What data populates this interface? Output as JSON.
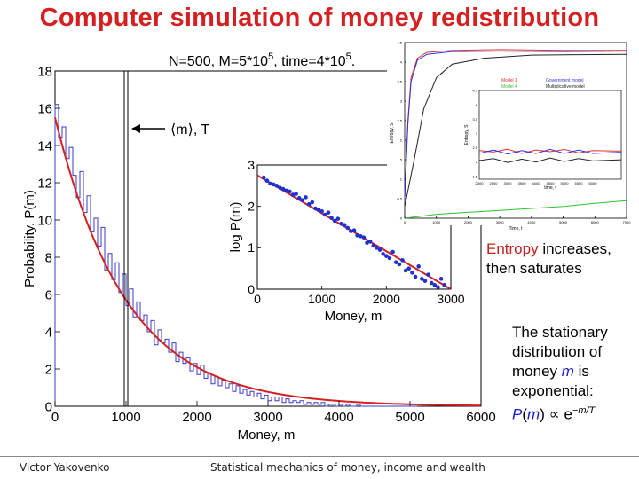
{
  "slide": {
    "title": "Computer simulation of money redistribution",
    "footer_left": "Victor Yakovenko",
    "footer_center": "Statistical mechanics of money, income and wealth"
  },
  "notes": {
    "entropy_word": "Entropy",
    "entropy_rest1": " increases,",
    "entropy_rest2": "then saturates",
    "stationary_1": "The stationary",
    "stationary_2": "distribution of",
    "stationary_3a": "money ",
    "stationary_3b": "m",
    "stationary_3c": " is",
    "stationary_4": "exponential:",
    "stationary_5a": "P",
    "stationary_5b": "(",
    "stationary_5c": "m",
    "stationary_5d": ") ∝ e",
    "stationary_5e": "−m/T"
  },
  "chart_data": [
    {
      "type": "line",
      "annotation_params": "N=500, M=5*10",
      "annotation_exp1": "5",
      "annotation_mid": ", time=4*10",
      "annotation_exp2": "5",
      "annotation_end": ".",
      "arrow_label": "⟨m⟩, T",
      "xlabel": "Money, m",
      "ylabel": "Probability, P(m)",
      "xlim": [
        0,
        6000
      ],
      "ylim": [
        0,
        18
      ],
      "xticks": [
        "0",
        "1000",
        "2000",
        "3000",
        "4000",
        "5000",
        "6000"
      ],
      "yticks": [
        "0",
        "2",
        "4",
        "6",
        "8",
        "10",
        "12",
        "14",
        "16",
        "18"
      ],
      "vertical_line_x": 1000,
      "fit_curve": {
        "color": "#d42020",
        "amplitude": 15.5,
        "T": 1000
      },
      "histogram_color": "#3a3acf",
      "histogram": [
        [
          0,
          16.2
        ],
        [
          50,
          14.4
        ],
        [
          100,
          15.0
        ],
        [
          150,
          13.3
        ],
        [
          200,
          13.9
        ],
        [
          250,
          12.4
        ],
        [
          300,
          11.2
        ],
        [
          350,
          12.6
        ],
        [
          400,
          10.4
        ],
        [
          450,
          11.3
        ],
        [
          500,
          9.4
        ],
        [
          550,
          10.1
        ],
        [
          600,
          8.6
        ],
        [
          650,
          9.6
        ],
        [
          700,
          7.3
        ],
        [
          750,
          8.2
        ],
        [
          800,
          6.8
        ],
        [
          850,
          7.7
        ],
        [
          900,
          6.1
        ],
        [
          950,
          7.1
        ],
        [
          1000,
          5.4
        ],
        [
          1050,
          6.3
        ],
        [
          1100,
          4.8
        ],
        [
          1150,
          5.6
        ],
        [
          1200,
          4.6
        ],
        [
          1250,
          4.9
        ],
        [
          1300,
          4.0
        ],
        [
          1350,
          4.6
        ],
        [
          1400,
          3.3
        ],
        [
          1450,
          4.1
        ],
        [
          1500,
          3.4
        ],
        [
          1550,
          3.6
        ],
        [
          1600,
          2.9
        ],
        [
          1650,
          3.4
        ],
        [
          1700,
          2.4
        ],
        [
          1750,
          2.9
        ],
        [
          1800,
          2.3
        ],
        [
          1850,
          2.6
        ],
        [
          1900,
          1.9
        ],
        [
          1950,
          2.3
        ],
        [
          2000,
          1.7
        ],
        [
          2050,
          2.2
        ],
        [
          2100,
          1.5
        ],
        [
          2150,
          1.8
        ],
        [
          2200,
          1.2
        ],
        [
          2250,
          1.6
        ],
        [
          2300,
          1.1
        ],
        [
          2350,
          1.4
        ],
        [
          2400,
          1.0
        ],
        [
          2450,
          1.2
        ],
        [
          2500,
          0.8
        ],
        [
          2550,
          1.1
        ],
        [
          2600,
          0.7
        ],
        [
          2650,
          0.9
        ],
        [
          2700,
          0.6
        ],
        [
          2750,
          0.8
        ],
        [
          2800,
          0.5
        ],
        [
          2850,
          0.7
        ],
        [
          2900,
          0.4
        ],
        [
          2950,
          0.6
        ],
        [
          3000,
          0.3
        ],
        [
          3050,
          0.5
        ],
        [
          3100,
          0.3
        ],
        [
          3150,
          0.5
        ],
        [
          3200,
          0.2
        ],
        [
          3250,
          0.4
        ],
        [
          3300,
          0.2
        ],
        [
          3350,
          0.3
        ],
        [
          3400,
          0.2
        ],
        [
          3450,
          0.3
        ],
        [
          3500,
          0.1
        ],
        [
          3550,
          0.2
        ],
        [
          3600,
          0.1
        ],
        [
          3650,
          0.2
        ],
        [
          3700,
          0.1
        ],
        [
          3750,
          0.2
        ],
        [
          3800,
          0.0
        ],
        [
          3850,
          0.1
        ],
        [
          3900,
          0.1
        ],
        [
          3950,
          0.0
        ],
        [
          4000,
          0.1
        ],
        [
          4050,
          0.0
        ],
        [
          4100,
          0.1
        ],
        [
          4150,
          0.0
        ],
        [
          4200,
          0.0
        ],
        [
          4250,
          0.1
        ],
        [
          4300,
          0.0
        ],
        [
          4350,
          0.0
        ],
        [
          4400,
          0.0
        ],
        [
          4450,
          0.0
        ],
        [
          4500,
          0.0
        ],
        [
          4550,
          0.0
        ],
        [
          4600,
          0.0
        ],
        [
          4650,
          0.0
        ],
        [
          4700,
          0.0
        ],
        [
          4750,
          0.0
        ],
        [
          4800,
          0.0
        ],
        [
          4850,
          0.0
        ],
        [
          4900,
          0.0
        ],
        [
          4950,
          0.0
        ],
        [
          5000,
          0.0
        ],
        [
          5050,
          0.0
        ]
      ]
    },
    {
      "type": "scatter",
      "xlabel": "Money, m",
      "ylabel": "log P(m)",
      "xlim": [
        0,
        3000
      ],
      "ylim": [
        0,
        3
      ],
      "xticks": [
        "0",
        "1000",
        "2000",
        "3000"
      ],
      "yticks": [
        "0",
        "1",
        "2",
        "3"
      ],
      "fit_line": {
        "x": [
          0,
          3000
        ],
        "y": [
          2.75,
          0
        ]
      },
      "points": [
        [
          100,
          2.7
        ],
        [
          150,
          2.62
        ],
        [
          200,
          2.55
        ],
        [
          250,
          2.53
        ],
        [
          300,
          2.5
        ],
        [
          350,
          2.45
        ],
        [
          400,
          2.42
        ],
        [
          450,
          2.38
        ],
        [
          500,
          2.36
        ],
        [
          550,
          2.28
        ],
        [
          600,
          2.3
        ],
        [
          650,
          2.2
        ],
        [
          700,
          2.15
        ],
        [
          750,
          2.22
        ],
        [
          800,
          2.05
        ],
        [
          850,
          2.1
        ],
        [
          900,
          1.95
        ],
        [
          950,
          1.92
        ],
        [
          1000,
          1.88
        ],
        [
          1050,
          1.8
        ],
        [
          1100,
          1.85
        ],
        [
          1150,
          1.72
        ],
        [
          1200,
          1.65
        ],
        [
          1250,
          1.7
        ],
        [
          1300,
          1.58
        ],
        [
          1350,
          1.55
        ],
        [
          1400,
          1.48
        ],
        [
          1450,
          1.4
        ],
        [
          1500,
          1.42
        ],
        [
          1550,
          1.3
        ],
        [
          1600,
          1.28
        ],
        [
          1650,
          1.25
        ],
        [
          1700,
          1.12
        ],
        [
          1750,
          1.15
        ],
        [
          1800,
          1.05
        ],
        [
          1850,
          1.0
        ],
        [
          1900,
          0.95
        ],
        [
          1950,
          0.85
        ],
        [
          2000,
          0.8
        ],
        [
          2050,
          0.75
        ],
        [
          2100,
          0.9
        ],
        [
          2150,
          0.65
        ],
        [
          2200,
          0.6
        ],
        [
          2250,
          0.7
        ],
        [
          2300,
          0.45
        ],
        [
          2350,
          0.5
        ],
        [
          2400,
          0.4
        ],
        [
          2450,
          0.3
        ],
        [
          2500,
          0.55
        ],
        [
          2550,
          0.25
        ],
        [
          2600,
          0.2
        ],
        [
          2650,
          0.35
        ],
        [
          2700,
          0.15
        ],
        [
          2750,
          0.1
        ],
        [
          2800,
          0.05
        ],
        [
          2850,
          0.25
        ],
        [
          2900,
          0.1
        ]
      ]
    },
    {
      "type": "line",
      "ylabel": "Entropy, S",
      "xlabel": "Time, t",
      "xlim": [
        0,
        7000
      ],
      "ylim": [
        0,
        4.5
      ],
      "xticks": [
        "0",
        "1000",
        "2000",
        "3000",
        "4000",
        "5000",
        "6000",
        "7000"
      ],
      "yticks": [
        "0",
        "0.5",
        "1",
        "1.5",
        "2",
        "2.5",
        "3",
        "3.5",
        "4",
        "4.5"
      ],
      "legend": [
        "Model 1",
        "Government model",
        "Model 4",
        "Multiplicative model"
      ],
      "series": [
        {
          "name": "Model 1",
          "color": "#e03030",
          "values": [
            [
              0,
              0.5
            ],
            [
              100,
              2.5
            ],
            [
              200,
              3.6
            ],
            [
              400,
              4.1
            ],
            [
              700,
              4.25
            ],
            [
              1500,
              4.3
            ],
            [
              3000,
              4.32
            ],
            [
              5000,
              4.3
            ],
            [
              7000,
              4.3
            ]
          ]
        },
        {
          "name": "Government model",
          "color": "#3030e0",
          "values": [
            [
              0,
              0.5
            ],
            [
              100,
              2.4
            ],
            [
              200,
              3.5
            ],
            [
              400,
              4.05
            ],
            [
              700,
              4.2
            ],
            [
              1500,
              4.27
            ],
            [
              3000,
              4.28
            ],
            [
              5000,
              4.27
            ],
            [
              7000,
              4.28
            ]
          ]
        },
        {
          "name": "Model 4",
          "color": "#30c030",
          "values": [
            [
              0,
              0.0
            ],
            [
              1000,
              0.1
            ],
            [
              2000,
              0.15
            ],
            [
              3000,
              0.2
            ],
            [
              4000,
              0.25
            ],
            [
              5000,
              0.3
            ],
            [
              6000,
              0.38
            ],
            [
              7000,
              0.45
            ]
          ]
        },
        {
          "name": "Multiplicative model",
          "color": "#222222",
          "values": [
            [
              0,
              0.3
            ],
            [
              300,
              1.5
            ],
            [
              600,
              2.8
            ],
            [
              1000,
              3.6
            ],
            [
              1500,
              3.95
            ],
            [
              2500,
              4.1
            ],
            [
              4000,
              4.18
            ],
            [
              7000,
              4.2
            ]
          ]
        }
      ]
    },
    {
      "type": "line",
      "ylabel": "Entropy, S",
      "xlabel": "time, t",
      "xlim": [
        2000,
        7000
      ],
      "ylim": [
        1.4,
        4.5
      ],
      "xticks": [
        "2000",
        "2500",
        "3000",
        "3500",
        "4000",
        "4500",
        "5000",
        "5500",
        "6000"
      ],
      "yticks": [
        "4.5",
        "4",
        "3.5",
        "3",
        "2.5",
        "2",
        "1.5"
      ],
      "series": [
        {
          "name": "Model 1",
          "color": "#e03030",
          "values": [
            [
              2000,
              2.4
            ],
            [
              2500,
              2.35
            ],
            [
              3000,
              2.45
            ],
            [
              3500,
              2.3
            ],
            [
              4000,
              2.42
            ],
            [
              4500,
              2.36
            ],
            [
              5000,
              2.44
            ],
            [
              5500,
              2.32
            ],
            [
              6000,
              2.4
            ],
            [
              7000,
              2.38
            ]
          ]
        },
        {
          "name": "Government model",
          "color": "#3030e0",
          "values": [
            [
              2000,
              2.3
            ],
            [
              2500,
              2.42
            ],
            [
              3000,
              2.28
            ],
            [
              3500,
              2.4
            ],
            [
              4000,
              2.3
            ],
            [
              4500,
              2.44
            ],
            [
              5000,
              2.3
            ],
            [
              5500,
              2.42
            ],
            [
              6000,
              2.3
            ],
            [
              7000,
              2.34
            ]
          ]
        },
        {
          "name": "Multiplicative model",
          "color": "#222222",
          "values": [
            [
              2000,
              2.05
            ],
            [
              2500,
              2.12
            ],
            [
              3000,
              1.98
            ],
            [
              3500,
              2.1
            ],
            [
              4000,
              2.0
            ],
            [
              4500,
              2.14
            ],
            [
              5000,
              2.02
            ],
            [
              5500,
              2.12
            ],
            [
              6000,
              2.04
            ],
            [
              7000,
              2.08
            ]
          ]
        }
      ]
    }
  ]
}
